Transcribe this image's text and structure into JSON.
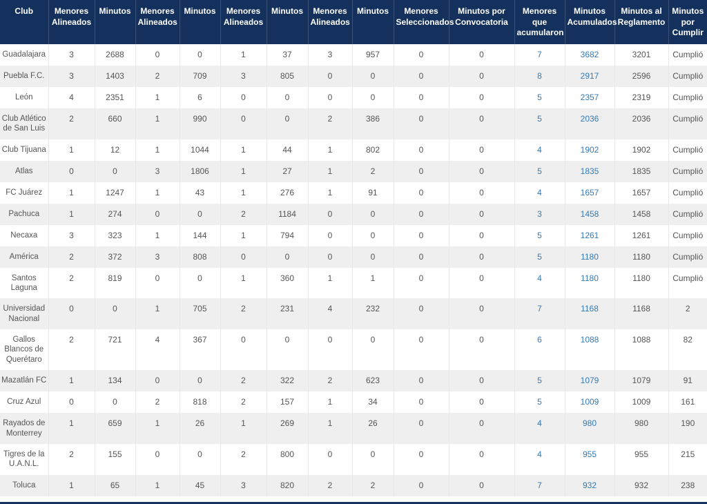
{
  "colors": {
    "header_bg": "#14315d",
    "header_text": "#ffffff",
    "row_alt_bg": "#efefef",
    "row_bg": "#ffffff",
    "cell_text": "#555555",
    "link_blue": "#337ab7",
    "cell_border": "#e7e7e7"
  },
  "table": {
    "columns": [
      {
        "label": "Club"
      },
      {
        "label": "Menores Alineados"
      },
      {
        "label": "Minutos"
      },
      {
        "label": "Menores Alineados"
      },
      {
        "label": "Minutos"
      },
      {
        "label": "Menores Alineados"
      },
      {
        "label": "Minutos"
      },
      {
        "label": "Menores Alineados"
      },
      {
        "label": "Minutos"
      },
      {
        "label": "Menores Seleccionados"
      },
      {
        "label": "Minutos por Convocatoria"
      },
      {
        "label": "Menores que acumularon"
      },
      {
        "label": "Minutos Acumulados"
      },
      {
        "label": "Minutos al Reglamento"
      },
      {
        "label": "Minutos por Cumplir"
      }
    ],
    "link_column_indices": [
      10,
      11
    ],
    "rows": [
      {
        "club": "Guadalajara",
        "values": [
          "3",
          "2688",
          "0",
          "0",
          "1",
          "37",
          "3",
          "957",
          "0",
          "0",
          "7",
          "3682",
          "3201",
          "Cumplió"
        ]
      },
      {
        "club": "Puebla F.C.",
        "values": [
          "3",
          "1403",
          "2",
          "709",
          "3",
          "805",
          "0",
          "0",
          "0",
          "0",
          "8",
          "2917",
          "2596",
          "Cumplió"
        ]
      },
      {
        "club": "León",
        "values": [
          "4",
          "2351",
          "1",
          "6",
          "0",
          "0",
          "0",
          "0",
          "0",
          "0",
          "5",
          "2357",
          "2319",
          "Cumplió"
        ]
      },
      {
        "club": "Club Atlético de San Luis",
        "values": [
          "2",
          "660",
          "1",
          "990",
          "0",
          "0",
          "2",
          "386",
          "0",
          "0",
          "5",
          "2036",
          "2036",
          "Cumplió"
        ]
      },
      {
        "club": "Club Tijuana",
        "values": [
          "1",
          "12",
          "1",
          "1044",
          "1",
          "44",
          "1",
          "802",
          "0",
          "0",
          "4",
          "1902",
          "1902",
          "Cumplió"
        ]
      },
      {
        "club": "Atlas",
        "values": [
          "0",
          "0",
          "3",
          "1806",
          "1",
          "27",
          "1",
          "2",
          "0",
          "0",
          "5",
          "1835",
          "1835",
          "Cumplió"
        ]
      },
      {
        "club": "FC Juárez",
        "values": [
          "1",
          "1247",
          "1",
          "43",
          "1",
          "276",
          "1",
          "91",
          "0",
          "0",
          "4",
          "1657",
          "1657",
          "Cumplió"
        ]
      },
      {
        "club": "Pachuca",
        "values": [
          "1",
          "274",
          "0",
          "0",
          "2",
          "1184",
          "0",
          "0",
          "0",
          "0",
          "3",
          "1458",
          "1458",
          "Cumplió"
        ]
      },
      {
        "club": "Necaxa",
        "values": [
          "3",
          "323",
          "1",
          "144",
          "1",
          "794",
          "0",
          "0",
          "0",
          "0",
          "5",
          "1261",
          "1261",
          "Cumplió"
        ]
      },
      {
        "club": "América",
        "values": [
          "2",
          "372",
          "3",
          "808",
          "0",
          "0",
          "0",
          "0",
          "0",
          "0",
          "5",
          "1180",
          "1180",
          "Cumplió"
        ]
      },
      {
        "club": "Santos Laguna",
        "values": [
          "2",
          "819",
          "0",
          "0",
          "1",
          "360",
          "1",
          "1",
          "0",
          "0",
          "4",
          "1180",
          "1180",
          "Cumplió"
        ]
      },
      {
        "club": "Universidad Nacional",
        "values": [
          "0",
          "0",
          "1",
          "705",
          "2",
          "231",
          "4",
          "232",
          "0",
          "0",
          "7",
          "1168",
          "1168",
          "2"
        ]
      },
      {
        "club": "Gallos Blancos de Querétaro",
        "values": [
          "2",
          "721",
          "4",
          "367",
          "0",
          "0",
          "0",
          "0",
          "0",
          "0",
          "6",
          "1088",
          "1088",
          "82"
        ]
      },
      {
        "club": "Mazatlán FC",
        "values": [
          "1",
          "134",
          "0",
          "0",
          "2",
          "322",
          "2",
          "623",
          "0",
          "0",
          "5",
          "1079",
          "1079",
          "91"
        ]
      },
      {
        "club": "Cruz Azul",
        "values": [
          "0",
          "0",
          "2",
          "818",
          "2",
          "157",
          "1",
          "34",
          "0",
          "0",
          "5",
          "1009",
          "1009",
          "161"
        ]
      },
      {
        "club": "Rayados de Monterrey",
        "values": [
          "1",
          "659",
          "1",
          "26",
          "1",
          "269",
          "1",
          "26",
          "0",
          "0",
          "4",
          "980",
          "980",
          "190"
        ]
      },
      {
        "club": "Tigres de la U.A.N.L.",
        "values": [
          "2",
          "155",
          "0",
          "0",
          "2",
          "800",
          "0",
          "0",
          "0",
          "0",
          "4",
          "955",
          "955",
          "215"
        ]
      },
      {
        "club": "Toluca",
        "values": [
          "1",
          "65",
          "1",
          "45",
          "3",
          "820",
          "2",
          "2",
          "0",
          "0",
          "7",
          "932",
          "932",
          "238"
        ]
      }
    ]
  }
}
